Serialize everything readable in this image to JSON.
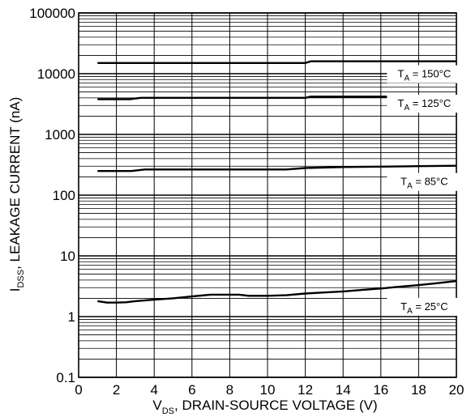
{
  "chart_data": {
    "type": "line",
    "title": "",
    "xlabel": {
      "main": "V",
      "sub": "DS",
      "rest": ", DRAIN-SOURCE VOLTAGE (V)"
    },
    "ylabel": {
      "main": "I",
      "sub": "DSS",
      "rest": ", LEAKAGE CURRENT (nA)"
    },
    "xlim": [
      0,
      20
    ],
    "ylim": [
      0.1,
      100000
    ],
    "yscale": "log",
    "grid": true,
    "x_ticks": [
      "0",
      "2",
      "4",
      "6",
      "8",
      "10",
      "12",
      "14",
      "16",
      "18",
      "20"
    ],
    "y_ticks": [
      "0.1",
      "1",
      "10",
      "100",
      "1000",
      "10000",
      "100000"
    ],
    "series": [
      {
        "name": "T_A = 150°C",
        "label": {
          "main": "T",
          "sub": "A",
          "rest": " = 150°C"
        },
        "label_at": {
          "x": 18.3,
          "y": 9800
        },
        "x": [
          1,
          3,
          6,
          10,
          12,
          12.3,
          14,
          17,
          20
        ],
        "y": [
          15000,
          15000,
          15000,
          15000,
          15000,
          16000,
          16000,
          16000,
          16000
        ]
      },
      {
        "name": "T_A = 125°C",
        "label": {
          "main": "T",
          "sub": "A",
          "rest": " = 125°C"
        },
        "label_at": {
          "x": 18.3,
          "y": 3200
        },
        "x": [
          1,
          2.7,
          3.3,
          6,
          10,
          12,
          12.3,
          16,
          20
        ],
        "y": [
          3800,
          3800,
          4000,
          4000,
          4000,
          4000,
          4200,
          4200,
          4200
        ]
      },
      {
        "name": "T_A = 85°C",
        "label": {
          "main": "T",
          "sub": "A",
          "rest": " = 85°C"
        },
        "label_at": {
          "x": 18.3,
          "y": 165
        },
        "x": [
          1,
          2.8,
          3.5,
          6,
          11,
          12,
          14,
          16,
          18,
          20
        ],
        "y": [
          250,
          250,
          265,
          265,
          265,
          280,
          290,
          295,
          300,
          305
        ]
      },
      {
        "name": "T_A = 25°C",
        "label": {
          "main": "T",
          "sub": "A",
          "rest": " = 25°C"
        },
        "label_at": {
          "x": 18.3,
          "y": 1.45
        },
        "x": [
          1,
          1.5,
          2,
          2.5,
          3,
          4,
          5,
          6,
          7,
          8,
          8.5,
          9,
          10,
          11,
          12,
          13,
          14,
          15,
          16,
          17,
          18,
          19,
          20
        ],
        "y": [
          1.8,
          1.7,
          1.7,
          1.72,
          1.8,
          1.9,
          2.0,
          2.15,
          2.3,
          2.3,
          2.3,
          2.2,
          2.2,
          2.25,
          2.4,
          2.5,
          2.6,
          2.75,
          2.9,
          3.1,
          3.3,
          3.55,
          3.85
        ]
      }
    ]
  }
}
